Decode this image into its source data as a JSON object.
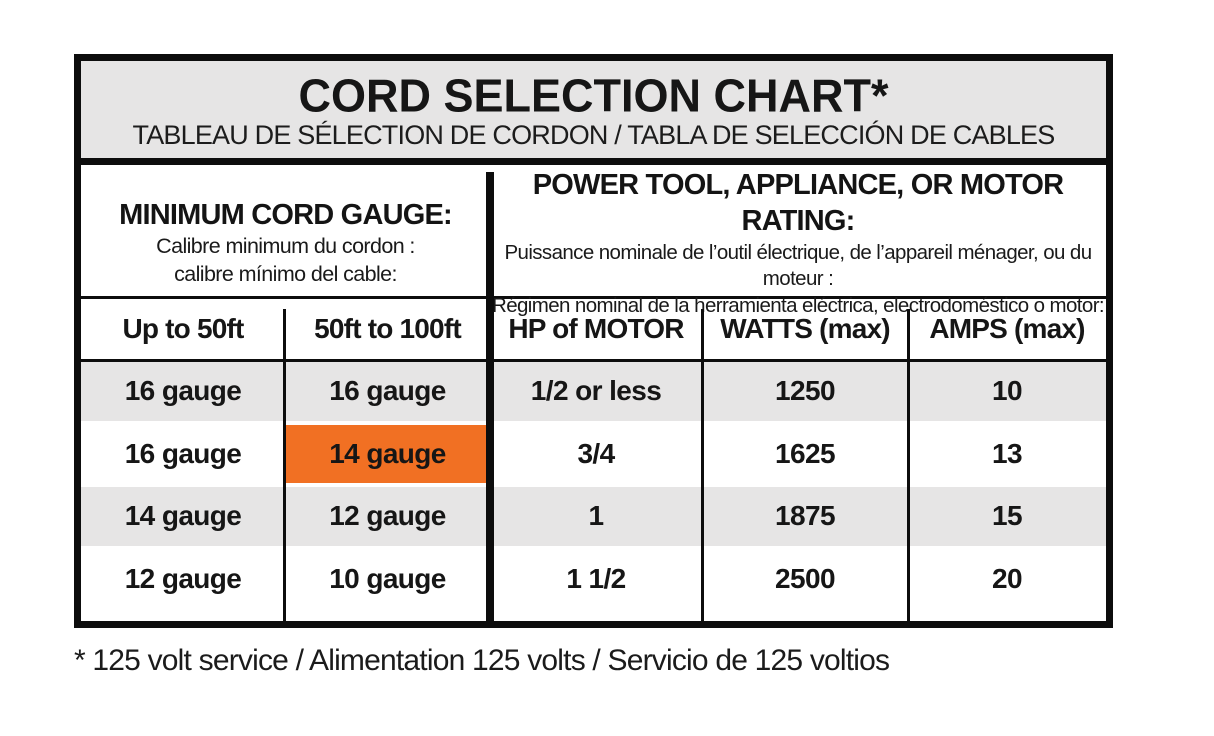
{
  "table": {
    "title": "CORD SELECTION CHART*",
    "subtitle": "TABLEAU DE SÉLECTION DE CORDON / TABLA DE SELECCIÓN DE CABLES",
    "left_header": {
      "heading": "MINIMUM CORD GAUGE:",
      "line_fr": "Calibre minimum du cordon :",
      "line_es": "calibre mínimo del cable:"
    },
    "right_header": {
      "heading": "POWER TOOL, APPLIANCE, OR MOTOR RATING:",
      "line_fr": "Puissance nominale de l’outil électrique, de l’appareil ménager, ou du moteur :",
      "line_es": "Régimen nominal de la herramienta eléctrica, electrodoméstico o motor:"
    },
    "columns": [
      "Up to 50ft",
      "50ft to 100ft",
      "HP of MOTOR",
      "WATTS (max)",
      "AMPS (max)"
    ],
    "rows": [
      {
        "cells": [
          "16 gauge",
          "16 gauge",
          "1/2 or less",
          "1250",
          "10"
        ]
      },
      {
        "cells": [
          "16 gauge",
          "14 gauge",
          "3/4",
          "1625",
          "13"
        ]
      },
      {
        "cells": [
          "14 gauge",
          "12 gauge",
          "1",
          "1875",
          "15"
        ]
      },
      {
        "cells": [
          "12 gauge",
          "10 gauge",
          "1 1/2",
          "2500",
          "20"
        ]
      }
    ],
    "highlight": {
      "row_index": 1,
      "col_index": 1,
      "value": "14 gauge"
    }
  },
  "footnote": "* 125 volt service / Alimentation 125 volts / Servicio de 125 voltios",
  "colors": {
    "band_gray": "#e6e5e5",
    "row_gray": "#e6e5e5",
    "highlight_orange": "#f17023",
    "border_black": "#0d0d0d"
  }
}
